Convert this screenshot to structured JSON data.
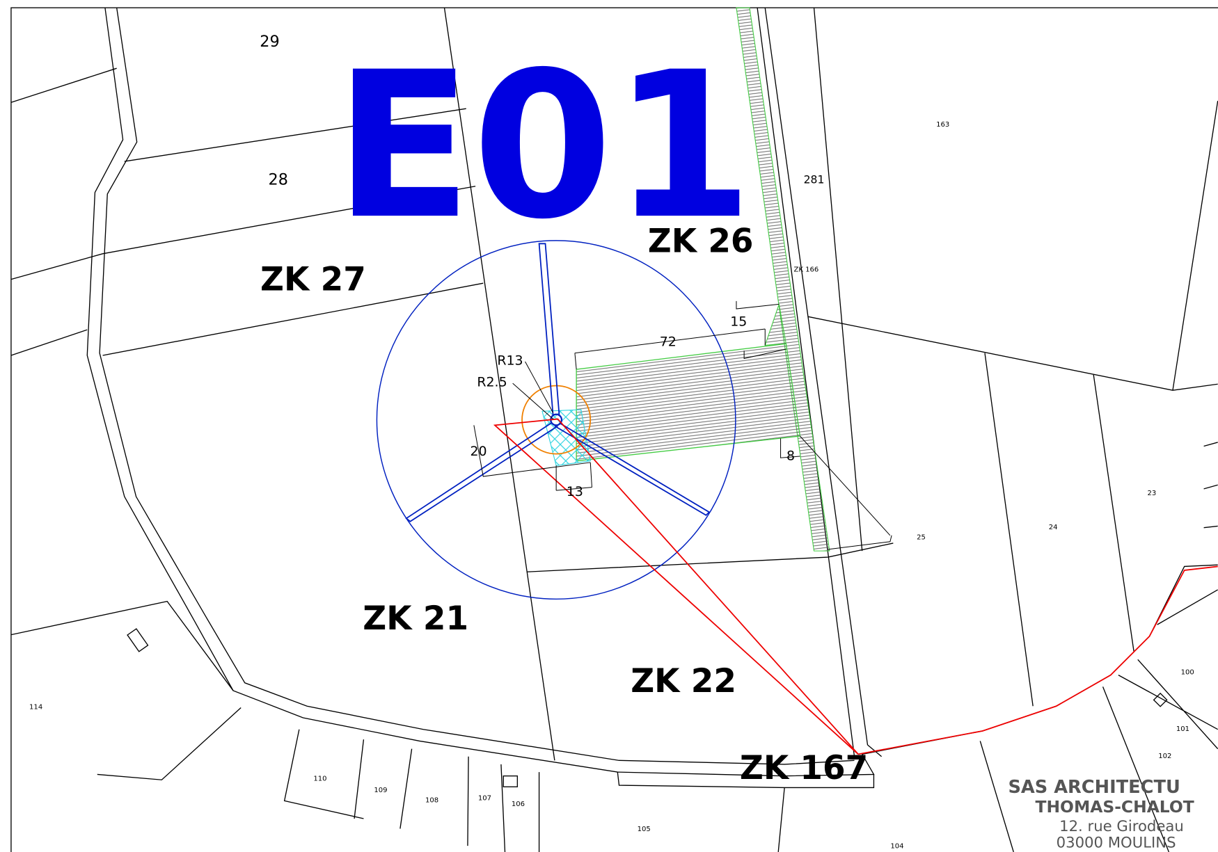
{
  "title": "E01",
  "parcels": [
    "ZK 26",
    "ZK 27",
    "ZK 21",
    "ZK 22",
    "ZK 167"
  ],
  "numbers": [
    "29",
    "28",
    "163",
    "281",
    "ZK 166",
    "25",
    "24",
    "23",
    "100",
    "101",
    "102",
    "114",
    "110",
    "109",
    "108",
    "107",
    "106",
    "105",
    "104"
  ],
  "dimensions": [
    "R13",
    "R2.5",
    "72",
    "15",
    "20",
    "13",
    "8"
  ],
  "stamp": [
    "SAS ARCHITECTU",
    "THOMAS-CHALOT",
    "12. rue Girodeau",
    "03000 MOULINS"
  ]
}
